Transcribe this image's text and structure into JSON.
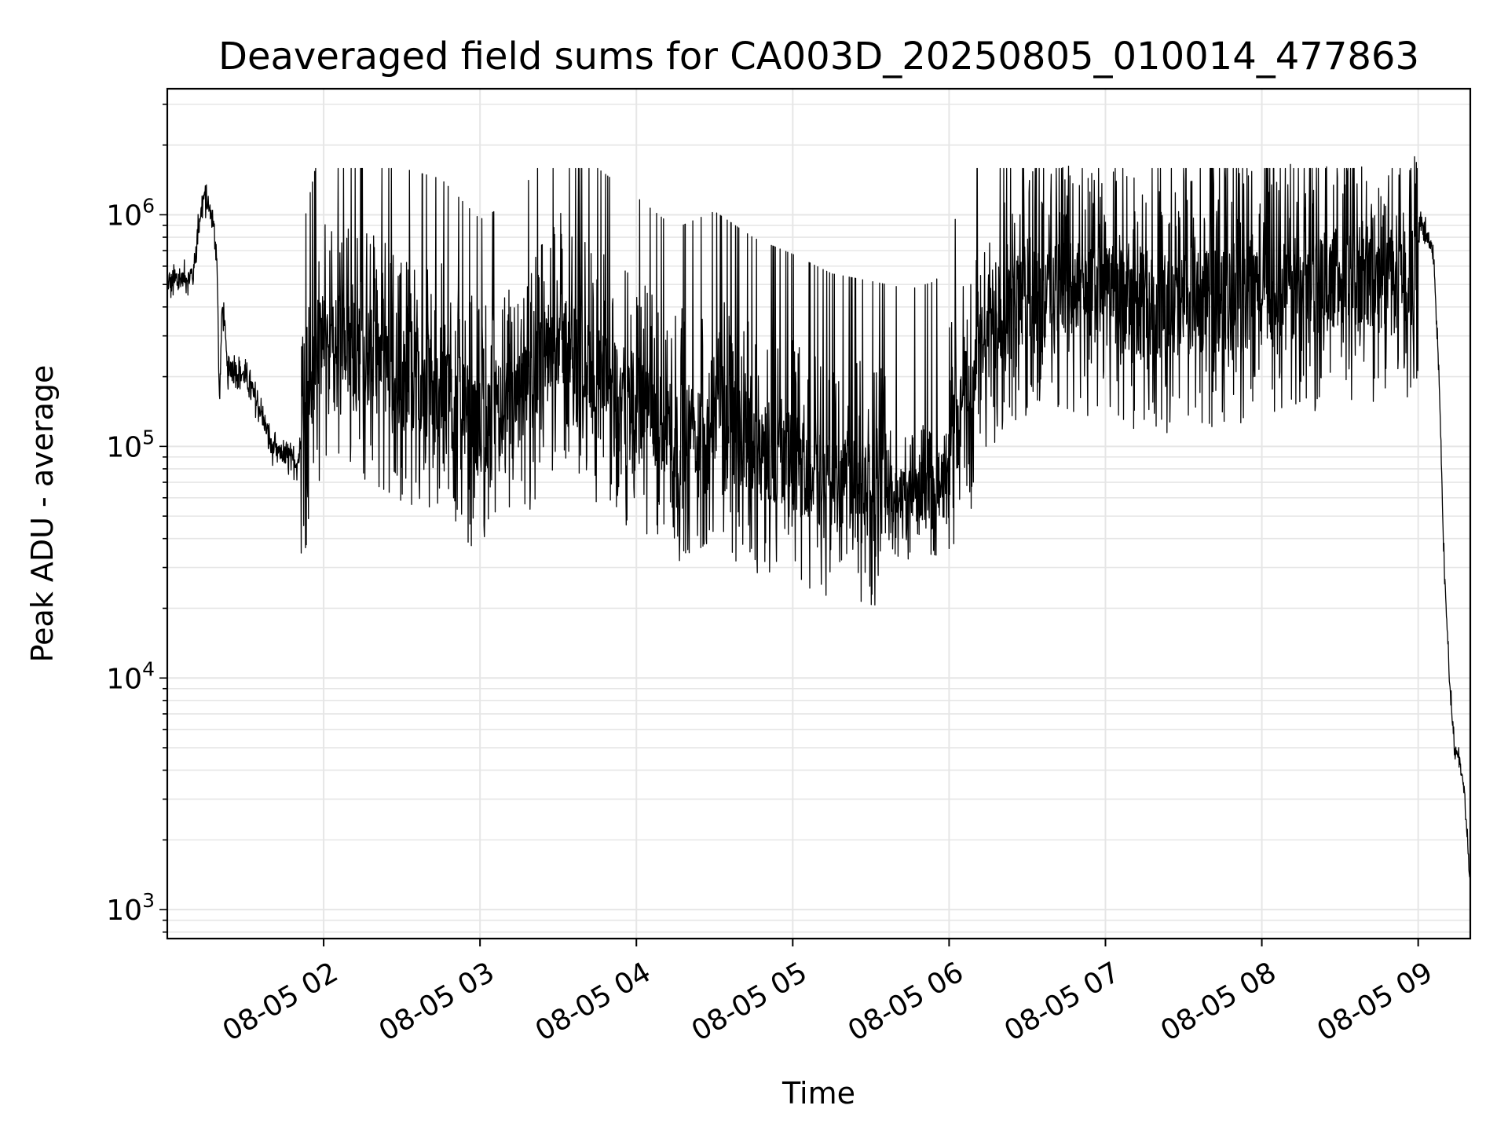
{
  "chart_data": {
    "type": "line",
    "title": "Deaveraged field sums for CA003D_20250805_010014_477863",
    "xlabel": "Time",
    "ylabel": "Peak ADU - average",
    "yscale": "log",
    "ylim": [
      750,
      3500000
    ],
    "xlim": [
      "2025-08-05 01:00",
      "2025-08-05 09:20"
    ],
    "grid": true,
    "grid_color": "#e6e6e6",
    "line_color": "#000000",
    "x_ticks": [
      {
        "t": "2025-08-05 02:00",
        "label": "08-05 02"
      },
      {
        "t": "2025-08-05 03:00",
        "label": "08-05 03"
      },
      {
        "t": "2025-08-05 04:00",
        "label": "08-05 04"
      },
      {
        "t": "2025-08-05 05:00",
        "label": "08-05 05"
      },
      {
        "t": "2025-08-05 06:00",
        "label": "08-05 06"
      },
      {
        "t": "2025-08-05 07:00",
        "label": "08-05 07"
      },
      {
        "t": "2025-08-05 08:00",
        "label": "08-05 08"
      },
      {
        "t": "2025-08-05 09:00",
        "label": "08-05 09"
      }
    ],
    "y_ticks": [
      {
        "value": 1000,
        "base": "10",
        "exp": "3"
      },
      {
        "value": 10000,
        "base": "10",
        "exp": "4"
      },
      {
        "value": 100000,
        "base": "10",
        "exp": "5"
      },
      {
        "value": 1000000,
        "base": "10",
        "exp": "6"
      }
    ],
    "series": [
      {
        "x": [
          "2025-08-05 01:00",
          "2025-08-05 01:10",
          "2025-08-05 01:12",
          "2025-08-05 01:14",
          "2025-08-05 01:17",
          "2025-08-05 01:19",
          "2025-08-05 01:20",
          "2025-08-05 01:21",
          "2025-08-05 01:22",
          "2025-08-05 01:23",
          "2025-08-05 01:25",
          "2025-08-05 01:30",
          "2025-08-05 01:35",
          "2025-08-05 01:40",
          "2025-08-05 01:45",
          "2025-08-05 01:50",
          "2025-08-05 02:00",
          "2025-08-05 02:15",
          "2025-08-05 02:30",
          "2025-08-05 02:45",
          "2025-08-05 03:00",
          "2025-08-05 03:15",
          "2025-08-05 03:30",
          "2025-08-05 03:45",
          "2025-08-05 04:00",
          "2025-08-05 04:15",
          "2025-08-05 04:30",
          "2025-08-05 04:45",
          "2025-08-05 05:00",
          "2025-08-05 05:15",
          "2025-08-05 05:30",
          "2025-08-05 05:45",
          "2025-08-05 05:55",
          "2025-08-05 06:05",
          "2025-08-05 06:20",
          "2025-08-05 06:40",
          "2025-08-05 07:00",
          "2025-08-05 07:20",
          "2025-08-05 07:40",
          "2025-08-05 08:00",
          "2025-08-05 08:20",
          "2025-08-05 08:40",
          "2025-08-05 08:50",
          "2025-08-05 08:58",
          "2025-08-05 09:01",
          "2025-08-05 09:04",
          "2025-08-05 09:06",
          "2025-08-05 09:08",
          "2025-08-05 09:10",
          "2025-08-05 09:12",
          "2025-08-05 09:14",
          "2025-08-05 09:16",
          "2025-08-05 09:18",
          "2025-08-05 09:20"
        ],
        "y": [
          500000,
          550000,
          900000,
          1200000,
          1000000,
          700000,
          150000,
          400000,
          350000,
          200000,
          220000,
          200000,
          150000,
          100000,
          90000,
          85000,
          300000,
          250000,
          200000,
          180000,
          120000,
          150000,
          300000,
          200000,
          150000,
          110000,
          130000,
          100000,
          85000,
          70000,
          65000,
          60000,
          65000,
          150000,
          400000,
          500000,
          450000,
          400000,
          420000,
          450000,
          500000,
          550000,
          480000,
          450000,
          1000000,
          750000,
          650000,
          200000,
          30000,
          10000,
          5000,
          4500,
          3000,
          1200
        ]
      }
    ]
  }
}
